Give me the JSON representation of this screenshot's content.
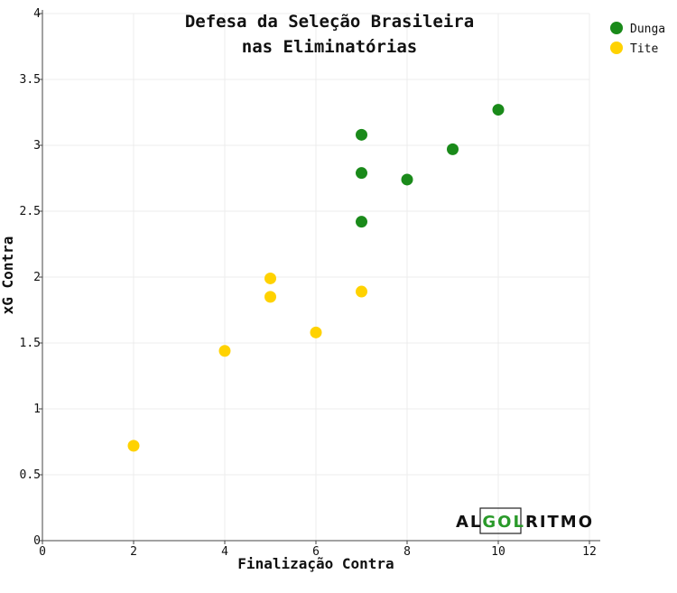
{
  "chart_data": {
    "type": "scatter",
    "title_lines": [
      "Defesa da Seleção Brasileira",
      "nas Eliminatórias"
    ],
    "xlabel": "Finalização Contra",
    "ylabel": "xG Contra",
    "xlim": [
      0,
      12
    ],
    "ylim": [
      0,
      4
    ],
    "xticks": [
      0,
      2,
      4,
      6,
      8,
      10,
      12
    ],
    "yticks": [
      0,
      0.5,
      1,
      1.5,
      2,
      2.5,
      3,
      3.5,
      4
    ],
    "grid": true,
    "legend_position": "top-right",
    "series": [
      {
        "name": "Dunga",
        "color": "#1a8a1a",
        "points": [
          {
            "x": 7,
            "y": 3.08
          },
          {
            "x": 7,
            "y": 2.79
          },
          {
            "x": 7,
            "y": 2.42
          },
          {
            "x": 8,
            "y": 2.74
          },
          {
            "x": 9,
            "y": 2.97
          },
          {
            "x": 10,
            "y": 3.27
          }
        ]
      },
      {
        "name": "Tite",
        "color": "#ffd200",
        "points": [
          {
            "x": 2,
            "y": 0.72
          },
          {
            "x": 4,
            "y": 1.44
          },
          {
            "x": 5,
            "y": 1.99
          },
          {
            "x": 5,
            "y": 1.85
          },
          {
            "x": 6,
            "y": 1.58
          },
          {
            "x": 7,
            "y": 1.89
          }
        ]
      }
    ]
  },
  "logo": {
    "part1": "AL",
    "part2": "GOL",
    "part3": "RITMO",
    "accent_color": "#2a9a2a"
  }
}
